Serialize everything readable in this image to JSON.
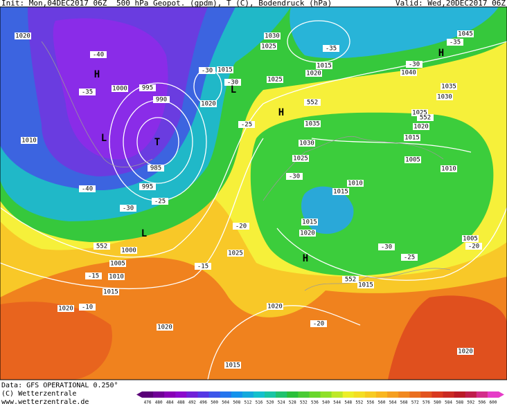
{
  "header": {
    "init": "Init: Mon,04DEC2017 06Z",
    "title": "500 hPa Geopot. (gpdm), T (C), Bodendruck (hPa)",
    "valid": "Valid: Wed,20DEC2017 06Z"
  },
  "footer": {
    "data": "Data: GFS OPERATIONAL 0.250°",
    "copyright": "(C) Wetterzentrale",
    "url": "www.wetterzentrale.de"
  },
  "colorbar": {
    "ticks": [
      476,
      480,
      484,
      488,
      492,
      496,
      500,
      504,
      508,
      512,
      516,
      520,
      524,
      528,
      532,
      536,
      540,
      544,
      548,
      552,
      556,
      560,
      564,
      568,
      572,
      576,
      580,
      584,
      588,
      592,
      596,
      600
    ]
  },
  "map": {
    "labels": [
      "1020",
      "1030",
      "1025",
      "1015",
      "1000",
      "995",
      "990",
      "1020",
      "1025",
      "1015",
      "1020",
      "1040",
      "1045",
      "1035",
      "1030",
      "1025",
      "1020",
      "1015",
      "1005",
      "1010",
      "1035",
      "1030",
      "1025",
      "1010",
      "1015",
      "1015",
      "1020",
      "1010",
      "985",
      "995",
      "1000",
      "1005",
      "1010",
      "1015",
      "1020",
      "1020",
      "1025",
      "1020",
      "1015",
      "1015",
      "1005",
      "1020",
      "-40",
      "-35",
      "-30",
      "-30",
      "-25",
      "-40",
      "-30",
      "-25",
      "-20",
      "-15",
      "-15",
      "-10",
      "-35",
      "-30",
      "-35",
      "-30",
      "-30",
      "-25",
      "-20",
      "-20",
      "552",
      "552",
      "552",
      "552"
    ],
    "centers": [
      "H",
      "L",
      "T",
      "L",
      "H",
      "H",
      "H",
      "L"
    ]
  }
}
